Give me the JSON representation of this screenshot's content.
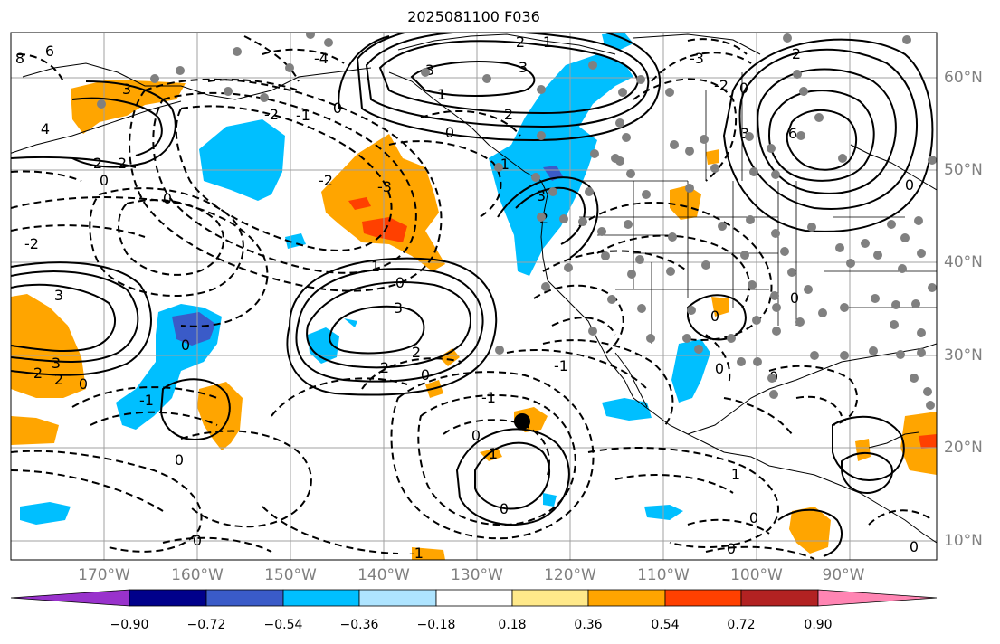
{
  "title": "2025081100 F036",
  "map": {
    "projection": "lat-lon",
    "lon_range": [
      "180°W",
      "84°W"
    ],
    "lat_range": [
      "8°N",
      "65°N"
    ],
    "fill_field_colorbar": "diverging",
    "contour_labels": [
      "-1",
      "-2",
      "-3",
      "-4",
      "0",
      "1",
      "2",
      "3",
      "4",
      "6",
      "8"
    ],
    "station_marker_color": "#808080",
    "highlight_marker_color": "#000000"
  },
  "axes": {
    "lon_ticks": [
      "170°W",
      "160°W",
      "150°W",
      "140°W",
      "130°W",
      "120°W",
      "110°W",
      "100°W",
      "90°W"
    ],
    "lat_ticks": [
      "60°N",
      "50°N",
      "40°N",
      "30°N",
      "20°N",
      "10°N"
    ]
  },
  "colorbar": {
    "ticks": [
      "−0.90",
      "−0.72",
      "−0.54",
      "−0.36",
      "−0.18",
      "0.18",
      "0.36",
      "0.54",
      "0.72",
      "0.90"
    ],
    "colors": [
      "#9932cc",
      "#00008b",
      "#3a5bc8",
      "#00bfff",
      "#aee4ff",
      "#ffffff",
      "#ffe98a",
      "#ffa500",
      "#ff4000",
      "#b22222",
      "#ff85b3"
    ]
  }
}
